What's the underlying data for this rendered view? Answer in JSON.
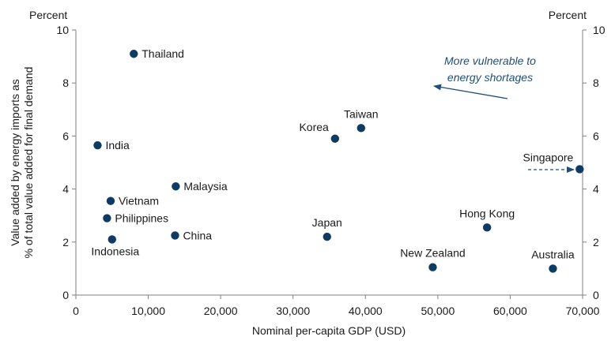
{
  "chart_data": {
    "type": "scatter",
    "title": "",
    "xlabel": "Nominal per-capita GDP (USD)",
    "ylabel_line1": "Value added by energy imports as",
    "ylabel_line2": "% of total value added for final demand",
    "y_unit_left": "Percent",
    "y_unit_right": "Percent",
    "xlim": [
      0,
      70000
    ],
    "ylim": [
      0,
      10
    ],
    "x_ticks": [
      0,
      10000,
      20000,
      30000,
      40000,
      50000,
      60000,
      70000
    ],
    "x_tick_labels": [
      "0",
      "10,000",
      "20,000",
      "30,000",
      "40,000",
      "50,000",
      "60,000",
      "70,000"
    ],
    "y_ticks": [
      0,
      2,
      4,
      6,
      8,
      10
    ],
    "y_tick_labels": [
      "0",
      "2",
      "4",
      "6",
      "8",
      "10"
    ],
    "grid": false,
    "marker_color": "#0f3b63",
    "annotation_color": "#1f4e79",
    "points": [
      {
        "label": "Thailand",
        "x": 8000,
        "y": 9.1,
        "pos": "right"
      },
      {
        "label": "India",
        "x": 3000,
        "y": 5.65,
        "pos": "right"
      },
      {
        "label": "Vietnam",
        "x": 4800,
        "y": 3.55,
        "pos": "right"
      },
      {
        "label": "Philippines",
        "x": 4300,
        "y": 2.9,
        "pos": "right"
      },
      {
        "label": "Indonesia",
        "x": 5000,
        "y": 2.1,
        "pos": "below"
      },
      {
        "label": "Malaysia",
        "x": 13800,
        "y": 4.1,
        "pos": "right"
      },
      {
        "label": "China",
        "x": 13700,
        "y": 2.25,
        "pos": "right"
      },
      {
        "label": "Korea",
        "x": 35800,
        "y": 5.9,
        "pos": "left-above"
      },
      {
        "label": "Taiwan",
        "x": 39400,
        "y": 6.3,
        "pos": "above"
      },
      {
        "label": "Japan",
        "x": 34700,
        "y": 2.2,
        "pos": "above"
      },
      {
        "label": "New Zealand",
        "x": 49300,
        "y": 1.05,
        "pos": "above"
      },
      {
        "label": "Hong Kong",
        "x": 56800,
        "y": 2.55,
        "pos": "above"
      },
      {
        "label": "Australia",
        "x": 65900,
        "y": 1.0,
        "pos": "above"
      },
      {
        "label": "Singapore",
        "x": 69600,
        "y": 4.75,
        "pos": "left-above"
      }
    ],
    "annotation": {
      "line1": "More vulnerable to",
      "line2": "energy shortages"
    }
  }
}
